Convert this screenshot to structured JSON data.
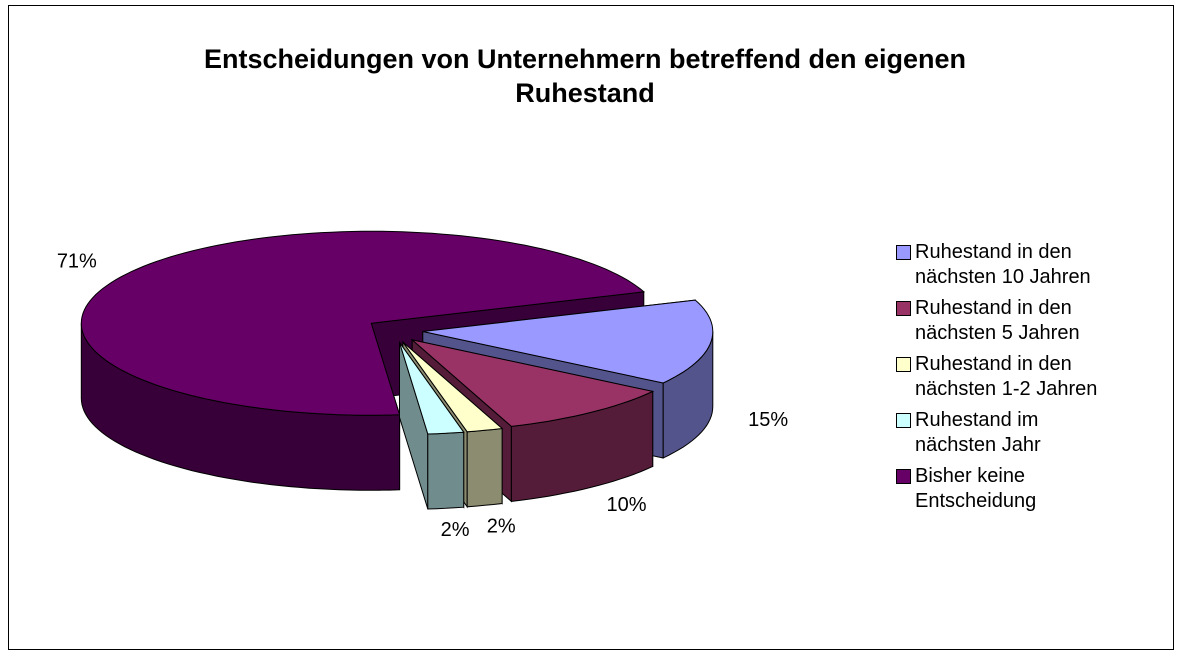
{
  "chart_data": {
    "type": "pie3d",
    "title": "Entscheidungen von Unternehmern betreffend den eigenen Ruhestand",
    "categories": [
      "Ruhestand in den nächsten 10 Jahren",
      "Ruhestand in den nächsten 5 Jahren",
      "Ruhestand in den nächsten 1-2 Jahren",
      "Ruhestand im nächsten Jahr",
      "Bisher keine Entscheidung"
    ],
    "values": [
      15,
      10,
      2,
      2,
      71
    ],
    "value_labels": [
      "15%",
      "10%",
      "2%",
      "2%",
      "71%"
    ],
    "colors": [
      "#9999ff",
      "#993366",
      "#ffffcc",
      "#ccffff",
      "#660066"
    ],
    "legend": "right"
  }
}
